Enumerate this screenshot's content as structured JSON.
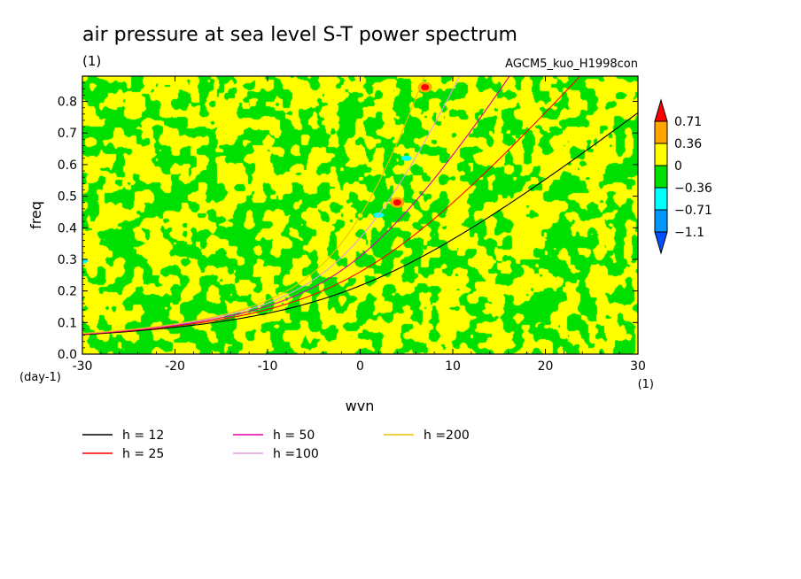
{
  "chart_data": {
    "type": "heatmap",
    "title": "air pressure at sea level S-T power spectrum",
    "title_unit": "(1)",
    "model_label": "AGCM5_kuo_H1998con",
    "xlabel": "wvn",
    "ylabel": "freq",
    "x_unit": "(1)",
    "y_unit": "(day-1)",
    "xlim": [
      -30,
      30
    ],
    "ylim": [
      0.0,
      0.88
    ],
    "x_ticks": [
      -30,
      -20,
      -10,
      0,
      10,
      20,
      30
    ],
    "x_tick_labels": [
      "-30",
      "-20",
      "-10",
      "0",
      "10",
      "20",
      "30"
    ],
    "y_ticks": [
      0.0,
      0.1,
      0.2,
      0.3,
      0.4,
      0.5,
      0.6,
      0.7,
      0.8
    ],
    "y_tick_labels": [
      "0.0",
      "0.1",
      "0.2",
      "0.3",
      "0.4",
      "0.5",
      "0.6",
      "0.7",
      "0.8"
    ],
    "colorbar": {
      "levels": [
        0.71,
        0.36,
        0,
        -0.36,
        -0.71,
        -1.1
      ],
      "level_labels": [
        "0.71",
        "0.36",
        "0",
        "−0.36",
        "−0.71",
        "−1.1"
      ],
      "colors": [
        "#ff0000",
        "#ffa500",
        "#ffff00",
        "#00e000",
        "#00ffff",
        "#0096ff",
        "#0050ff"
      ]
    },
    "highlights": [
      {
        "x": 4,
        "y": 0.48,
        "color": "#ff0000"
      },
      {
        "x": 7,
        "y": 0.845,
        "color": "#ff0000"
      },
      {
        "x": 5,
        "y": 0.62,
        "color": "#00ffff"
      },
      {
        "x": 2,
        "y": 0.44,
        "color": "#00ffff"
      },
      {
        "x": -30,
        "y": 0.295,
        "color": "#00ffff"
      }
    ],
    "series": [
      {
        "name": "h = 12",
        "h": 12,
        "color": "#000000"
      },
      {
        "name": "h = 25",
        "h": 25,
        "color": "#ff0000"
      },
      {
        "name": "h = 50",
        "h": 50,
        "color": "#e000a0"
      },
      {
        "name": "h =100",
        "h": 100,
        "color": "#e0a0e0"
      },
      {
        "name": "h =200",
        "h": 200,
        "color": "#f0c000"
      }
    ]
  }
}
